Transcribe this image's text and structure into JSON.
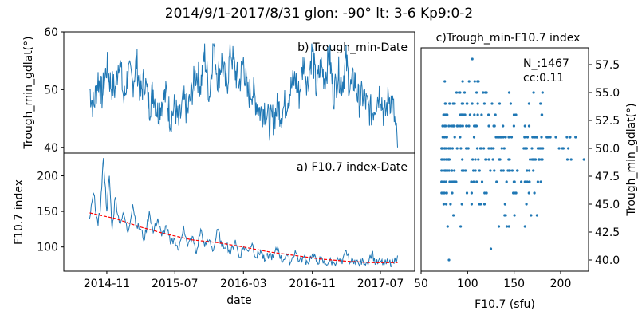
{
  "figure": {
    "title": "2014/9/1-2017/8/31  glon: -90° lt: 3-6  Kp9:0-2",
    "line_color": "#1f77b4",
    "trend_color": "#ff0000"
  },
  "chart_data": [
    {
      "id": "b",
      "type": "line",
      "title": "b) Trough_min-Date",
      "xlabel": "",
      "ylabel": "Trough_min_gdlat(°)",
      "xlim": [
        "2014-06-01",
        "2017-10-31"
      ],
      "ylim": [
        39,
        60
      ],
      "yticks": [
        40,
        50,
        60
      ],
      "xticks_shared": true,
      "series": [
        {
          "values_note_removed": true,
          "x": [
            "2014-09-01",
            "2014-09-15",
            "2014-10-01",
            "2014-10-15",
            "2014-11-01",
            "2014-11-15",
            "2014-12-01",
            "2014-12-15",
            "2015-01-01",
            "2015-01-15",
            "2015-02-01",
            "2015-02-15",
            "2015-03-01",
            "2015-03-15",
            "2015-04-01",
            "2015-04-15",
            "2015-05-01",
            "2015-05-15",
            "2015-06-01",
            "2015-06-15",
            "2015-07-01",
            "2015-07-15",
            "2015-08-01",
            "2015-08-15",
            "2015-09-01",
            "2015-09-15",
            "2015-10-01",
            "2015-10-15",
            "2015-11-01",
            "2015-11-15",
            "2015-12-01",
            "2015-12-15",
            "2016-01-01",
            "2016-01-15",
            "2016-02-01",
            "2016-02-15",
            "2016-03-01",
            "2016-03-15",
            "2016-04-01",
            "2016-04-15",
            "2016-05-01",
            "2016-05-15",
            "2016-06-01",
            "2016-06-15",
            "2016-07-01",
            "2016-07-15",
            "2016-08-01",
            "2016-08-15",
            "2016-09-01",
            "2016-09-15",
            "2016-10-01",
            "2016-10-15",
            "2016-11-01",
            "2016-11-15",
            "2016-12-01",
            "2016-12-15",
            "2017-01-01",
            "2017-01-15",
            "2017-02-01",
            "2017-02-15",
            "2017-03-01",
            "2017-03-15",
            "2017-04-01",
            "2017-04-15",
            "2017-05-01",
            "2017-05-15",
            "2017-06-01",
            "2017-06-15",
            "2017-07-01",
            "2017-07-15",
            "2017-08-01",
            "2017-08-15",
            "2017-08-31"
          ],
          "y": [
            50,
            47,
            52,
            49,
            54,
            51,
            50,
            56,
            48,
            53,
            51,
            55,
            49,
            52,
            47,
            50,
            46,
            48,
            49,
            45,
            47,
            44,
            48,
            46,
            50,
            53,
            51,
            56,
            49,
            58,
            52,
            55,
            50,
            57,
            53,
            51,
            55,
            49,
            50,
            48,
            46,
            47,
            44,
            45,
            47,
            46,
            48,
            50,
            52,
            49,
            55,
            51,
            57,
            50,
            54,
            52,
            56,
            49,
            53,
            51,
            55,
            50,
            52,
            48,
            49,
            47,
            46,
            48,
            50,
            45,
            49,
            47,
            40
          ]
        }
      ]
    },
    {
      "id": "a",
      "type": "line",
      "title": "a) F10.7 index-Date",
      "xlabel": "date",
      "ylabel": "F10.7 index",
      "xlim": [
        "2014-06-01",
        "2017-10-31"
      ],
      "ylim": [
        66,
        232
      ],
      "yticks": [
        100,
        150,
        200
      ],
      "xticks": [
        "2014-11",
        "2015-07",
        "2016-03",
        "2016-11",
        "2017-07"
      ],
      "series": [
        {
          "x": [
            "2014-09-01",
            "2014-09-15",
            "2014-10-01",
            "2014-10-10",
            "2014-10-20",
            "2014-11-01",
            "2014-11-10",
            "2014-11-20",
            "2014-12-01",
            "2014-12-15",
            "2015-01-01",
            "2015-01-15",
            "2015-02-01",
            "2015-02-15",
            "2015-03-01",
            "2015-03-15",
            "2015-04-01",
            "2015-04-15",
            "2015-05-01",
            "2015-05-15",
            "2015-06-01",
            "2015-06-15",
            "2015-07-01",
            "2015-07-15",
            "2015-08-01",
            "2015-08-15",
            "2015-09-01",
            "2015-09-15",
            "2015-10-01",
            "2015-10-15",
            "2015-11-01",
            "2015-11-15",
            "2015-12-01",
            "2015-12-15",
            "2016-01-01",
            "2016-01-15",
            "2016-02-01",
            "2016-02-15",
            "2016-03-01",
            "2016-03-15",
            "2016-04-01",
            "2016-04-15",
            "2016-05-01",
            "2016-05-15",
            "2016-06-01",
            "2016-06-15",
            "2016-07-01",
            "2016-07-15",
            "2016-08-01",
            "2016-08-15",
            "2016-09-01",
            "2016-09-15",
            "2016-10-01",
            "2016-10-15",
            "2016-11-01",
            "2016-11-15",
            "2016-12-01",
            "2016-12-15",
            "2017-01-01",
            "2017-01-15",
            "2017-02-01",
            "2017-02-15",
            "2017-03-01",
            "2017-03-15",
            "2017-04-01",
            "2017-04-15",
            "2017-05-01",
            "2017-05-15",
            "2017-06-01",
            "2017-06-15",
            "2017-07-01",
            "2017-07-15",
            "2017-08-01",
            "2017-08-15",
            "2017-08-31"
          ],
          "y": [
            140,
            175,
            130,
            160,
            225,
            150,
            200,
            125,
            170,
            135,
            145,
            120,
            160,
            130,
            125,
            110,
            150,
            120,
            140,
            115,
            130,
            105,
            110,
            95,
            130,
            100,
            115,
            90,
            125,
            100,
            110,
            95,
            125,
            100,
            105,
            90,
            110,
            85,
            100,
            95,
            105,
            85,
            95,
            80,
            90,
            85,
            100,
            80,
            90,
            78,
            95,
            80,
            85,
            78,
            90,
            80,
            82,
            76,
            80,
            78,
            82,
            76,
            95,
            78,
            82,
            76,
            80,
            78,
            92,
            76,
            80,
            76,
            78,
            78,
            88
          ]
        },
        {
          "name": "",
          "trend": true,
          "x": [
            "2014-09-01",
            "2014-12-01",
            "2015-03-01",
            "2015-06-01",
            "2015-09-01",
            "2015-12-01",
            "2016-03-01",
            "2016-06-01",
            "2016-09-01",
            "2016-12-01",
            "2017-03-01",
            "2017-06-01",
            "2017-08-31"
          ],
          "y": [
            148,
            140,
            128,
            118,
            110,
            106,
            100,
            93,
            88,
            83,
            80,
            78,
            78
          ]
        }
      ]
    },
    {
      "id": "c",
      "type": "scatter",
      "title": "c)Trough_min-F10.7 index",
      "xlabel": "F10.7 (sfu)",
      "ylabel": "Trough_min_gdlat(°)",
      "xlim": [
        50,
        230
      ],
      "ylim": [
        39,
        59
      ],
      "xticks": [
        50,
        100,
        150,
        200
      ],
      "yticks": [
        40.0,
        42.5,
        45.0,
        47.5,
        50.0,
        52.5,
        55.0,
        57.5
      ],
      "annotation_n": "N_:1467",
      "annotation_cc": "cc:0.11"
    }
  ]
}
